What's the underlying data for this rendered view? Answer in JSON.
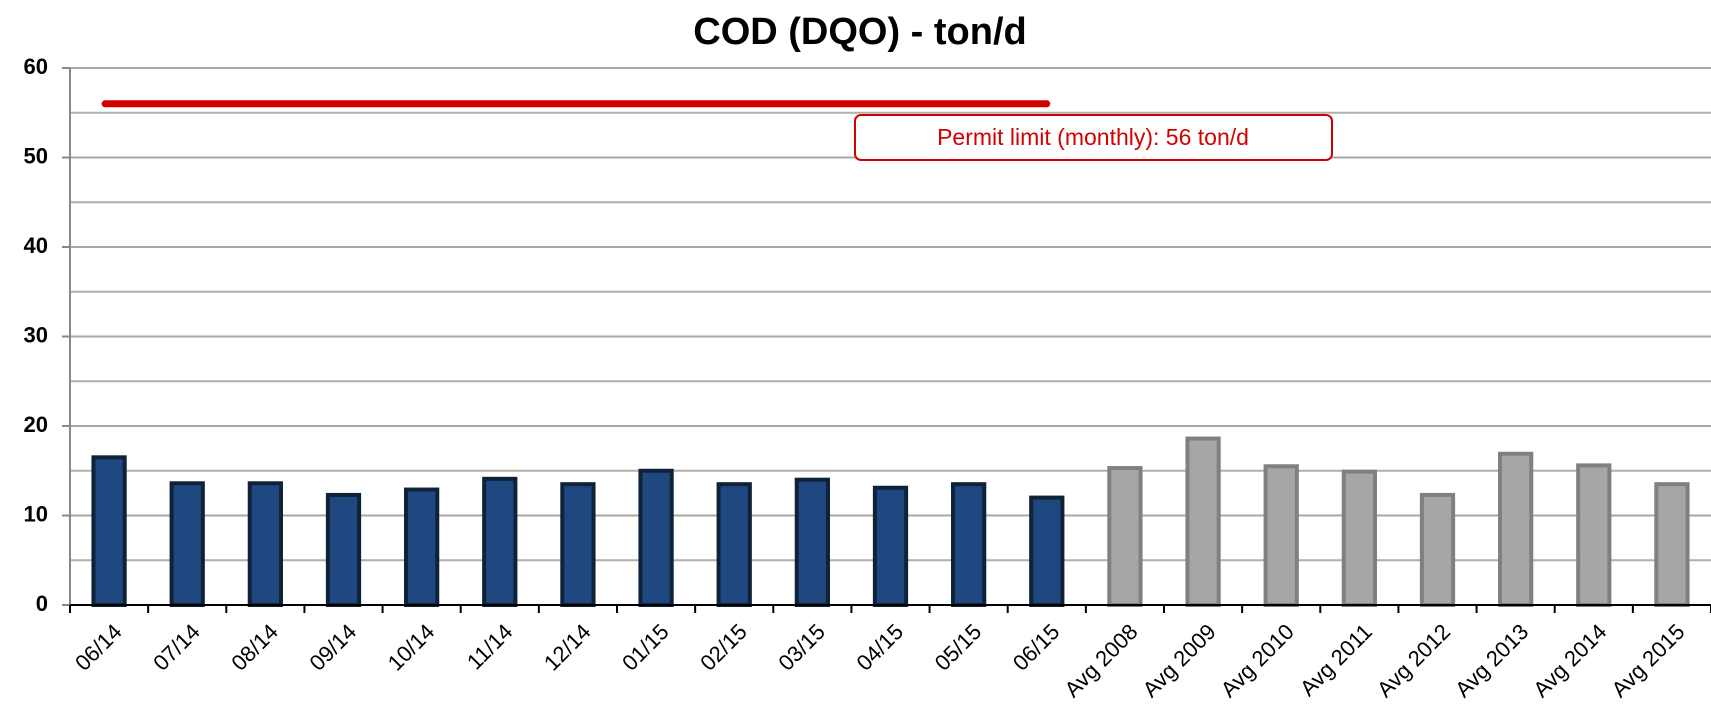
{
  "chart_data": {
    "type": "bar",
    "title": "COD (DQO) - ton/d",
    "categories": [
      "06/14",
      "07/14",
      "08/14",
      "09/14",
      "10/14",
      "11/14",
      "12/14",
      "01/15",
      "02/15",
      "03/15",
      "04/15",
      "05/15",
      "06/15",
      "Avg 2008",
      "Avg 2009",
      "Avg 2010",
      "Avg 2011",
      "Avg 2012",
      "Avg 2013",
      "Avg 2014",
      "Avg 2015"
    ],
    "values": [
      16.5,
      13.6,
      13.6,
      12.3,
      12.9,
      14.1,
      13.5,
      15.0,
      13.5,
      14.0,
      13.1,
      13.5,
      12.0,
      15.3,
      18.6,
      15.5,
      14.9,
      12.3,
      16.9,
      15.6,
      13.5
    ],
    "colors": [
      "#1f4880",
      "#1f4880",
      "#1f4880",
      "#1f4880",
      "#1f4880",
      "#1f4880",
      "#1f4880",
      "#1f4880",
      "#1f4880",
      "#1f4880",
      "#1f4880",
      "#1f4880",
      "#1f4880",
      "#a6a6a6",
      "#a6a6a6",
      "#a6a6a6",
      "#a6a6a6",
      "#a6a6a6",
      "#a6a6a6",
      "#a6a6a6",
      "#a6a6a6"
    ],
    "ylim": [
      0,
      60
    ],
    "yticks": [
      0,
      10,
      20,
      30,
      40,
      50,
      60
    ],
    "yminor": [
      5,
      15,
      25,
      35,
      45,
      55
    ],
    "grid": true,
    "limit": {
      "value": 56,
      "label": "Permit limit (monthly): 56 ton/d",
      "color": "#d40000",
      "from": "06/14",
      "to": "06/15"
    }
  }
}
